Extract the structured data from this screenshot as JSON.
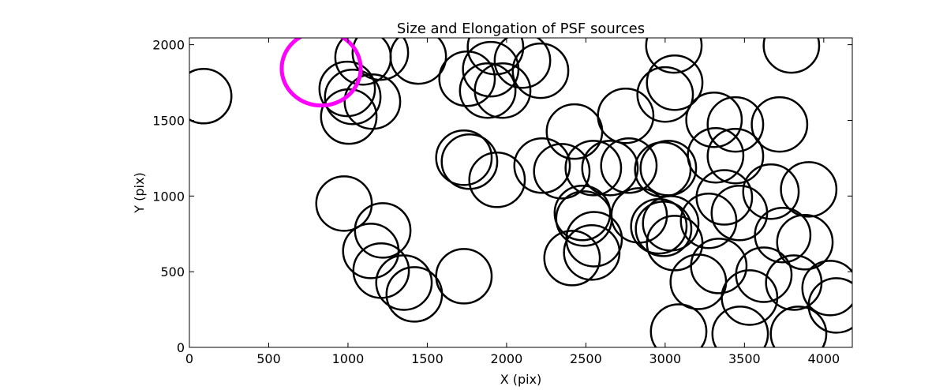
{
  "chart_data": {
    "type": "scatter",
    "title": "Size and Elongation of PSF sources",
    "xlabel": "X (pix)",
    "ylabel": "Y (pix)",
    "xlim": [
      0,
      4180
    ],
    "ylim": [
      0,
      2045
    ],
    "xticks": [
      0,
      500,
      1000,
      1500,
      2000,
      2500,
      3000,
      3500,
      4000
    ],
    "yticks": [
      0,
      500,
      1000,
      1500,
      2000
    ],
    "grid": false,
    "marker": "ellipse",
    "ellipse_semi_axes": [
      175,
      180
    ],
    "color": "#000000",
    "highlight": {
      "x": 831,
      "y": 1843,
      "semi_axes": [
        249,
        245
      ],
      "color": "#ff00ff"
    },
    "points": [
      [
        90,
        1660
      ],
      [
        995,
        1708
      ],
      [
        1030,
        1655
      ],
      [
        1005,
        1525
      ],
      [
        1154,
        1624
      ],
      [
        1095,
        1916
      ],
      [
        1204,
        1948
      ],
      [
        1443,
        1922
      ],
      [
        1751,
        1775
      ],
      [
        1900,
        1838
      ],
      [
        1881,
        1697
      ],
      [
        1975,
        1697
      ],
      [
        1930,
        1984
      ],
      [
        2214,
        1828
      ],
      [
        2100,
        1895
      ],
      [
        3055,
        1995
      ],
      [
        3060,
        1749
      ],
      [
        3000,
        1671
      ],
      [
        2428,
        1426
      ],
      [
        2751,
        1530
      ],
      [
        3308,
        1504
      ],
      [
        3443,
        1473
      ],
      [
        3721,
        1473
      ],
      [
        3796,
        1995
      ],
      [
        2224,
        1201
      ],
      [
        2348,
        1164
      ],
      [
        2547,
        1185
      ],
      [
        2652,
        1185
      ],
      [
        2771,
        1201
      ],
      [
        2985,
        1175
      ],
      [
        3020,
        1185
      ],
      [
        3318,
        1269
      ],
      [
        3443,
        1264
      ],
      [
        3667,
        1029
      ],
      [
        3905,
        1044
      ],
      [
        3373,
        991
      ],
      [
        3468,
        888
      ],
      [
        3274,
        836
      ],
      [
        2478,
        888
      ],
      [
        2488,
        851
      ],
      [
        2552,
        715
      ],
      [
        2537,
        627
      ],
      [
        2413,
        590
      ],
      [
        2836,
        872
      ],
      [
        2960,
        800
      ],
      [
        2990,
        783
      ],
      [
        3035,
        820
      ],
      [
        3060,
        689
      ],
      [
        3209,
        433
      ],
      [
        3338,
        538
      ],
      [
        3532,
        329
      ],
      [
        3622,
        480
      ],
      [
        3741,
        742
      ],
      [
        3881,
        695
      ],
      [
        3811,
        428
      ],
      [
        4040,
        392
      ],
      [
        4080,
        277
      ],
      [
        3085,
        104
      ],
      [
        3473,
        89
      ],
      [
        3841,
        89
      ],
      [
        975,
        950
      ],
      [
        1219,
        773
      ],
      [
        1144,
        637
      ],
      [
        1209,
        507
      ],
      [
        1353,
        428
      ],
      [
        1418,
        350
      ],
      [
        1731,
        470
      ],
      [
        1731,
        1253
      ],
      [
        1766,
        1227
      ],
      [
        1940,
        1107
      ]
    ]
  }
}
